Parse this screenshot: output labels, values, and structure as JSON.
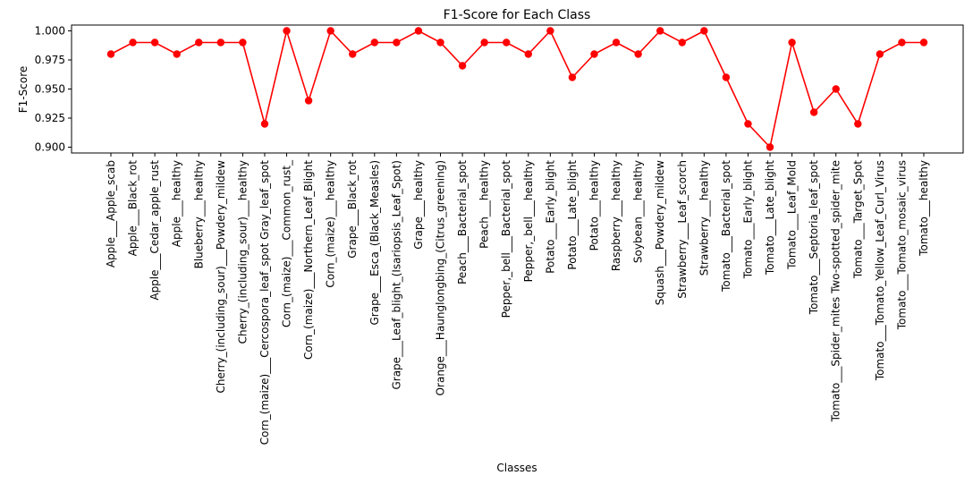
{
  "chart_data": {
    "type": "line",
    "title": "F1-Score for Each Class",
    "xlabel": "Classes",
    "ylabel": "F1-Score",
    "ylim": [
      0.895,
      1.005
    ],
    "yticks": [
      "0.900",
      "0.925",
      "0.950",
      "0.975",
      "1.000"
    ],
    "grid": false,
    "series_color": "#ff0000",
    "categories": [
      "Apple___Apple_scab",
      "Apple___Black_rot",
      "Apple___Cedar_apple_rust",
      "Apple___healthy",
      "Blueberry___healthy",
      "Cherry_(including_sour)___Powdery_mildew",
      "Cherry_(including_sour)___healthy",
      "Corn_(maize)___Cercospora_leaf_spot Gray_leaf_spot",
      "Corn_(maize)___Common_rust_",
      "Corn_(maize)___Northern_Leaf_Blight",
      "Corn_(maize)___healthy",
      "Grape___Black_rot",
      "Grape___Esca_(Black_Measles)",
      "Grape___Leaf_blight_(Isariopsis_Leaf_Spot)",
      "Grape___healthy",
      "Orange___Haunglongbing_(Citrus_greening)",
      "Peach___Bacterial_spot",
      "Peach___healthy",
      "Pepper,_bell___Bacterial_spot",
      "Pepper,_bell___healthy",
      "Potato___Early_blight",
      "Potato___Late_blight",
      "Potato___healthy",
      "Raspberry___healthy",
      "Soybean___healthy",
      "Squash___Powdery_mildew",
      "Strawberry___Leaf_scorch",
      "Strawberry___healthy",
      "Tomato___Bacterial_spot",
      "Tomato___Early_blight",
      "Tomato___Late_blight",
      "Tomato___Leaf_Mold",
      "Tomato___Septoria_leaf_spot",
      "Tomato___Spider_mites Two-spotted_spider_mite",
      "Tomato___Target_Spot",
      "Tomato___Tomato_Yellow_Leaf_Curl_Virus",
      "Tomato___Tomato_mosaic_virus",
      "Tomato___healthy"
    ],
    "values": [
      0.98,
      0.99,
      0.99,
      0.98,
      0.99,
      0.99,
      0.99,
      0.92,
      1.0,
      0.94,
      1.0,
      0.98,
      0.99,
      0.99,
      1.0,
      0.99,
      0.97,
      0.99,
      0.99,
      0.98,
      1.0,
      0.96,
      0.98,
      0.99,
      0.98,
      1.0,
      0.99,
      1.0,
      0.96,
      0.92,
      0.9,
      0.99,
      0.93,
      0.95,
      0.92,
      0.98,
      0.99,
      0.99
    ]
  }
}
